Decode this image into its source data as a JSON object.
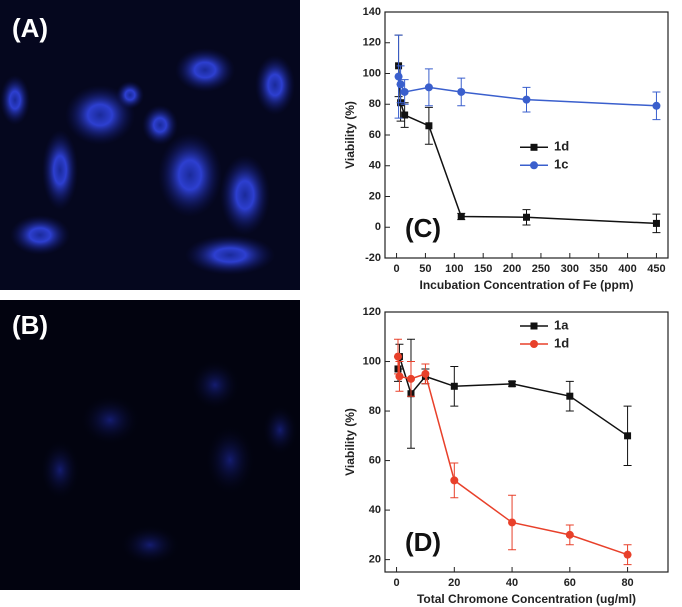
{
  "images": [
    {
      "label": "(A)"
    },
    {
      "label": "(B)"
    }
  ],
  "chart_data": [
    {
      "type": "line",
      "panel_label": "(C)",
      "x_label": "Incubation Concentration of Fe (ppm)",
      "y_label": "Viability (%)",
      "x": [
        3.5,
        7,
        14,
        56,
        112,
        225,
        450
      ],
      "series": [
        {
          "name": "1d",
          "color": "#111111",
          "marker": "square",
          "values": [
            105,
            81,
            73,
            66,
            7,
            6.5,
            2.5
          ],
          "errors": [
            20,
            12,
            8,
            12,
            2,
            5,
            6
          ]
        },
        {
          "name": "1c",
          "color": "#3a5fcd",
          "marker": "circle",
          "values": [
            98,
            93,
            88,
            91,
            88,
            83,
            79
          ],
          "errors": [
            27,
            12,
            8,
            12,
            9,
            8,
            9
          ]
        }
      ],
      "xlim": [
        -20,
        470
      ],
      "xticks": [
        0,
        50,
        100,
        150,
        200,
        250,
        300,
        350,
        400,
        450
      ],
      "ylim": [
        -20,
        140
      ],
      "yticks": [
        -20,
        0,
        20,
        40,
        60,
        80,
        100,
        120,
        140
      ],
      "legend": "middle"
    },
    {
      "type": "line",
      "panel_label": "(D)",
      "x_label": "Total Chromone Concentration (ug/ml)",
      "y_label": "Viability (%)",
      "x": [
        0.5,
        1,
        5,
        10,
        20,
        40,
        60,
        80
      ],
      "series": [
        {
          "name": "1a",
          "color": "#111111",
          "marker": "square",
          "values": [
            97,
            102,
            87,
            94,
            90,
            91,
            86,
            70
          ],
          "errors": [
            5,
            5,
            22,
            3,
            8,
            1,
            6,
            12
          ]
        },
        {
          "name": "1d",
          "color": "#e8402a",
          "marker": "circle",
          "values": [
            102,
            94,
            93,
            95,
            52,
            35,
            30,
            22
          ],
          "errors": [
            7,
            6,
            7,
            4,
            7,
            11,
            4,
            4
          ]
        }
      ],
      "xlim": [
        -4,
        94
      ],
      "xticks": [
        0,
        20,
        40,
        60,
        80
      ],
      "ylim": [
        15,
        120
      ],
      "yticks": [
        20,
        40,
        60,
        80,
        100,
        120
      ],
      "legend": "top"
    }
  ]
}
